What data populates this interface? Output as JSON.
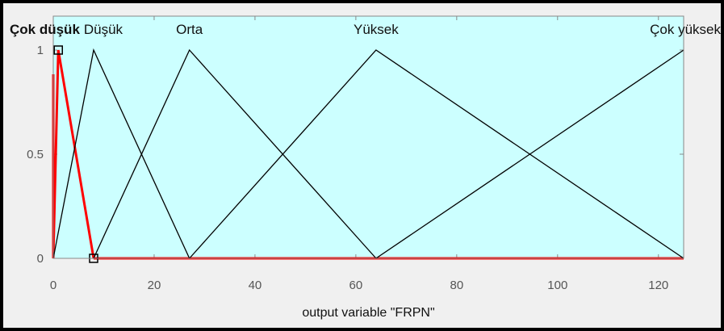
{
  "chart_data": {
    "type": "line",
    "title": "",
    "xlabel": "output variable \"FRPN\"",
    "ylabel": "",
    "xlim": [
      0,
      125
    ],
    "ylim": [
      0,
      1
    ],
    "xticks": [
      0,
      20,
      40,
      60,
      80,
      100,
      120
    ],
    "yticks": [
      0,
      0.5,
      1
    ],
    "grid": false,
    "background_color": "#ccffff",
    "series": [
      {
        "name": "Çok düşük",
        "label_text": "Çok düşük",
        "color": "#ff0000",
        "selected": true,
        "x": [
          0,
          1,
          8
        ],
        "y": [
          0,
          1,
          0
        ]
      },
      {
        "name": "Düşük",
        "label_text": "Düşük",
        "color": "#000000",
        "selected": false,
        "x": [
          0,
          8,
          27
        ],
        "y": [
          0,
          1,
          0
        ]
      },
      {
        "name": "Orta",
        "label_text": "Orta",
        "color": "#000000",
        "selected": false,
        "x": [
          8,
          27,
          64
        ],
        "y": [
          0,
          1,
          0
        ]
      },
      {
        "name": "Yüksek",
        "label_text": "Yüksek",
        "color": "#000000",
        "selected": false,
        "x": [
          27,
          64,
          125
        ],
        "y": [
          0,
          1,
          0
        ]
      },
      {
        "name": "Çok yüksek",
        "label_text": "Çok yüksek",
        "color": "#000000",
        "selected": false,
        "x": [
          64,
          125,
          125
        ],
        "y": [
          0,
          1,
          1
        ]
      }
    ]
  }
}
